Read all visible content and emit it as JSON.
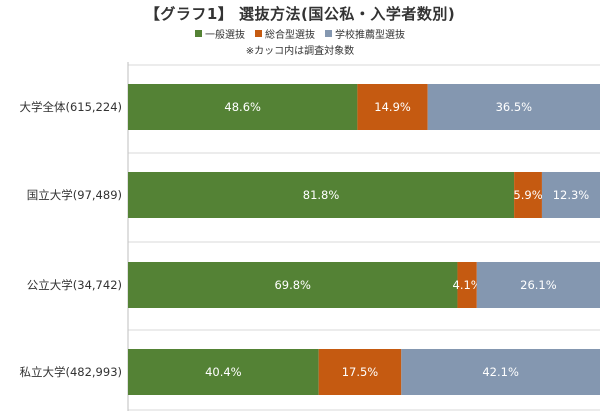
{
  "title": "【グラフ1】 選抜方法(国公私・入学者数別)",
  "note": "※カッコ内は調査対象数",
  "legend": [
    {
      "label": "一般選抜",
      "color": "#548235"
    },
    {
      "label": "総合型選抜",
      "color": "#C55A11"
    },
    {
      "label": "学校推薦型選抜",
      "color": "#8497B0"
    }
  ],
  "chart_data": {
    "type": "bar",
    "orientation": "horizontal",
    "stacked": true,
    "categories": [
      "大学全体(615,224)",
      "国立大学(97,489)",
      "公立大学(34,742)",
      "私立大学(482,993)"
    ],
    "series": [
      {
        "name": "一般選抜",
        "values": [
          48.6,
          81.8,
          69.8,
          40.4
        ],
        "labels": [
          "48.6%",
          "81.8%",
          "69.8%",
          "40.4%"
        ],
        "color": "#548235"
      },
      {
        "name": "総合型選抜",
        "values": [
          14.9,
          5.9,
          4.1,
          17.5
        ],
        "labels": [
          "14.9%",
          "5.9%",
          "4.1%",
          "17.5%"
        ],
        "color": "#C55A11"
      },
      {
        "name": "学校推薦型選抜",
        "values": [
          36.5,
          12.3,
          26.1,
          42.1
        ],
        "labels": [
          "36.5%",
          "12.3%",
          "26.1%",
          "42.1%"
        ],
        "color": "#8497B0"
      }
    ],
    "xlim": [
      0,
      100
    ],
    "grid": true
  }
}
